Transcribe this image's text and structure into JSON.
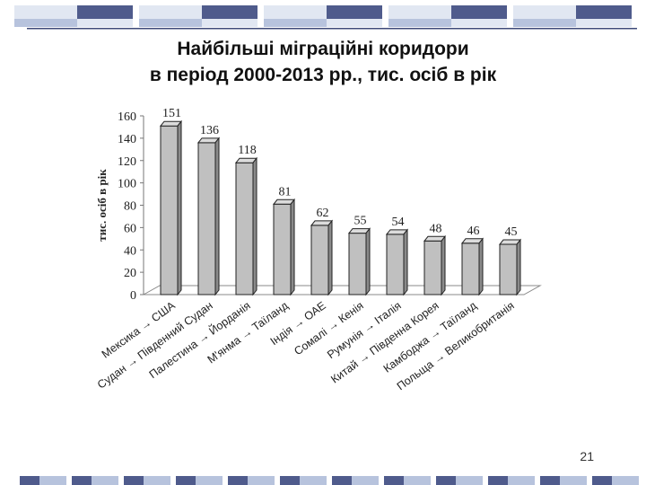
{
  "title_lines": [
    "Найбільші міграційні коридори",
    "в період 2000-2013 рр., тис. осіб в рік"
  ],
  "page_number": "21",
  "decoration": {
    "dark": "#4f5b8c",
    "light": "#b7c3dd",
    "pale": "#e1e7f2",
    "line": "#3e4a78"
  },
  "chart_data": {
    "type": "bar",
    "title": "Найбільші міграційні коридори в період 2000-2013 рр., тис. осіб в рік",
    "ylabel": "тис. осіб в рік",
    "xlabel": "",
    "ylim": [
      0,
      160
    ],
    "yticks": [
      0,
      20,
      40,
      60,
      80,
      100,
      120,
      140,
      160
    ],
    "grid": false,
    "legend": "none",
    "bar_color": "#c0c0c0",
    "categories": [
      "Мексика → США",
      "Судан → Південний Судан",
      "Палестина → Йорданія",
      "М'янма → Таїланд",
      "Індія → ОАЕ",
      "Сомалі → Кенія",
      "Румунія → Італія",
      "Китай → Південна Корея",
      "Камбоджа → Таїланд",
      "Польща → Великобританія"
    ],
    "values": [
      151,
      136,
      118,
      81,
      62,
      55,
      54,
      48,
      46,
      45
    ],
    "value_labels": [
      "151",
      "136",
      "118",
      "81",
      "62",
      "55",
      "54",
      "48",
      "46",
      "45"
    ]
  }
}
